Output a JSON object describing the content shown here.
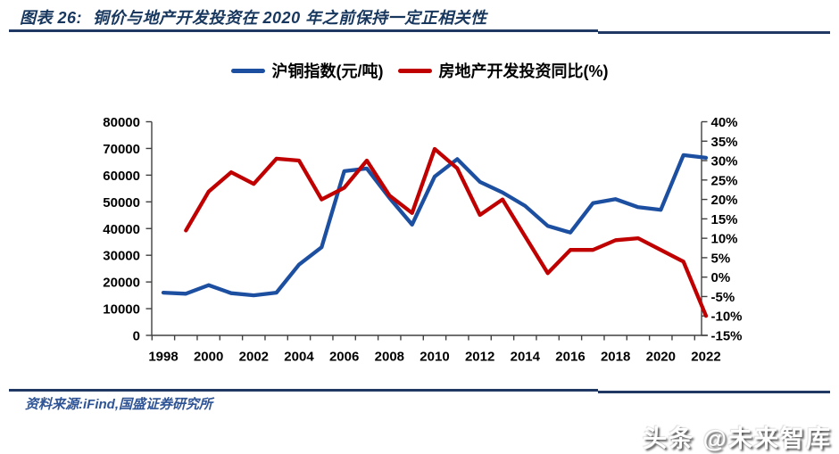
{
  "figure": {
    "label": "图表 26:",
    "title": "铜价与地产开发投资在 2020 年之前保持一定正相关性"
  },
  "legend": {
    "items": [
      {
        "label": "沪铜指数(元/吨)",
        "color": "#1d4fa1"
      },
      {
        "label": "房地产开发投资同比(%)",
        "color": "#c00000"
      }
    ]
  },
  "source_note": "资料来源:iFind,国盛证券研究所",
  "watermark": "头条 @未来智库",
  "colors": {
    "title_navy": "#17375e",
    "rule_navy": "#1f3864",
    "copper_blue": "#1d4fa1",
    "investment_red": "#c00000",
    "axis_gray": "#404040"
  },
  "chart_data": {
    "type": "line",
    "x": [
      1998,
      1999,
      2000,
      2001,
      2002,
      2003,
      2004,
      2005,
      2006,
      2007,
      2008,
      2009,
      2010,
      2011,
      2012,
      2013,
      2014,
      2015,
      2016,
      2017,
      2018,
      2019,
      2020,
      2021,
      2022
    ],
    "series": [
      {
        "name": "沪铜指数(元/吨)",
        "axis": "left",
        "color": "#1d4fa1",
        "values": [
          16000,
          15600,
          18800,
          15800,
          15000,
          16000,
          26500,
          33000,
          61500,
          62500,
          51500,
          41500,
          59500,
          66000,
          57500,
          53500,
          48500,
          41000,
          38500,
          49500,
          51000,
          48000,
          47000,
          67500,
          66500
        ]
      },
      {
        "name": "房地产开发投资同比(%)",
        "axis": "right",
        "color": "#c00000",
        "values": [
          null,
          12,
          22,
          27,
          24,
          30.5,
          30,
          20,
          23,
          30,
          21,
          16.5,
          33,
          28,
          16,
          20,
          10.5,
          1,
          7,
          7,
          9.5,
          10,
          7,
          4,
          -10
        ]
      }
    ],
    "left_axis": {
      "min": 0,
      "max": 80000,
      "tick_labels": [
        "0",
        "10000",
        "20000",
        "30000",
        "40000",
        "50000",
        "60000",
        "70000",
        "80000"
      ]
    },
    "right_axis": {
      "min": -15,
      "max": 40,
      "tick_labels": [
        "-15%",
        "-10%",
        "-5%",
        "0%",
        "5%",
        "10%",
        "15%",
        "20%",
        "25%",
        "30%",
        "35%",
        "40%"
      ]
    },
    "x_axis": {
      "tick_labels": [
        "1998",
        "2000",
        "2002",
        "2004",
        "2006",
        "2008",
        "2010",
        "2012",
        "2014",
        "2016",
        "2018",
        "2020",
        "2022"
      ]
    },
    "grid": false,
    "legend_position": "top"
  }
}
